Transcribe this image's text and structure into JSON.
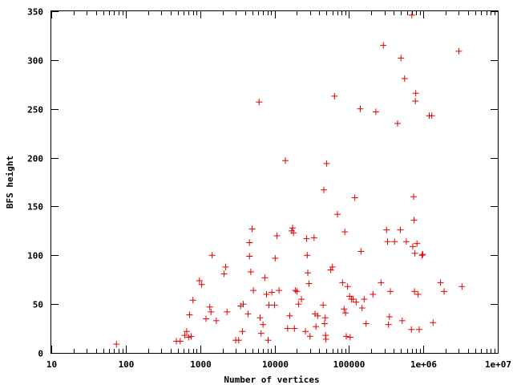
{
  "chart_data": {
    "type": "scatter",
    "xlabel": "Number of vertices",
    "ylabel": "BFS height",
    "x_scale": "log",
    "xlim": [
      10,
      10000000
    ],
    "ylim": [
      0,
      350
    ],
    "x_ticks": [
      {
        "value": 10,
        "label": "10"
      },
      {
        "value": 100,
        "label": "100"
      },
      {
        "value": 1000,
        "label": "1000"
      },
      {
        "value": 10000,
        "label": "10000"
      },
      {
        "value": 100000,
        "label": "100000"
      },
      {
        "value": 1000000,
        "label": "1e+06"
      },
      {
        "value": 10000000,
        "label": "1e+07"
      }
    ],
    "y_ticks": [
      {
        "value": 0,
        "label": "0"
      },
      {
        "value": 50,
        "label": "50"
      },
      {
        "value": 100,
        "label": "100"
      },
      {
        "value": 150,
        "label": "150"
      },
      {
        "value": 200,
        "label": "200"
      },
      {
        "value": 250,
        "label": "250"
      },
      {
        "value": 300,
        "label": "300"
      },
      {
        "value": 350,
        "label": "350"
      }
    ],
    "grid": false,
    "legend": "none",
    "marker": "plus",
    "color": "#e00000",
    "points": [
      [
        75,
        9
      ],
      [
        480,
        12
      ],
      [
        540,
        12
      ],
      [
        620,
        18
      ],
      [
        660,
        22
      ],
      [
        700,
        16
      ],
      [
        720,
        39
      ],
      [
        760,
        17
      ],
      [
        800,
        54
      ],
      [
        980,
        74
      ],
      [
        1050,
        70
      ],
      [
        1200,
        35
      ],
      [
        1350,
        47
      ],
      [
        1400,
        42
      ],
      [
        1450,
        100
      ],
      [
        1650,
        33
      ],
      [
        2100,
        81
      ],
      [
        2200,
        88
      ],
      [
        2300,
        42
      ],
      [
        3000,
        13
      ],
      [
        3300,
        13
      ],
      [
        3500,
        48
      ],
      [
        3700,
        22
      ],
      [
        3800,
        50
      ],
      [
        4400,
        40
      ],
      [
        4600,
        113
      ],
      [
        4600,
        99
      ],
      [
        4800,
        83
      ],
      [
        5000,
        127
      ],
      [
        5200,
        64
      ],
      [
        6200,
        257
      ],
      [
        6400,
        36
      ],
      [
        6600,
        20
      ],
      [
        7000,
        29
      ],
      [
        7400,
        77
      ],
      [
        7800,
        60
      ],
      [
        8200,
        13
      ],
      [
        8400,
        49
      ],
      [
        9200,
        62
      ],
      [
        10000,
        49
      ],
      [
        10200,
        97
      ],
      [
        10800,
        120
      ],
      [
        11500,
        64
      ],
      [
        14000,
        197
      ],
      [
        15000,
        25
      ],
      [
        16000,
        38
      ],
      [
        17000,
        125
      ],
      [
        17500,
        128
      ],
      [
        18000,
        123
      ],
      [
        18500,
        25
      ],
      [
        19000,
        64
      ],
      [
        20000,
        63
      ],
      [
        21000,
        50
      ],
      [
        23000,
        55
      ],
      [
        26000,
        22
      ],
      [
        27000,
        117
      ],
      [
        27500,
        100
      ],
      [
        28000,
        82
      ],
      [
        29000,
        71
      ],
      [
        30000,
        17
      ],
      [
        34000,
        118
      ],
      [
        35000,
        40
      ],
      [
        36000,
        27
      ],
      [
        38000,
        38
      ],
      [
        45000,
        49
      ],
      [
        46000,
        167
      ],
      [
        47000,
        30
      ],
      [
        48000,
        36
      ],
      [
        48500,
        18
      ],
      [
        49000,
        14
      ],
      [
        50000,
        194
      ],
      [
        57000,
        85
      ],
      [
        60000,
        88
      ],
      [
        64000,
        263
      ],
      [
        70000,
        142
      ],
      [
        82000,
        72
      ],
      [
        86000,
        45
      ],
      [
        88000,
        124
      ],
      [
        90000,
        41
      ],
      [
        92000,
        17
      ],
      [
        96000,
        68
      ],
      [
        102000,
        58
      ],
      [
        104000,
        16
      ],
      [
        108000,
        55
      ],
      [
        114000,
        55
      ],
      [
        120000,
        159
      ],
      [
        125000,
        52
      ],
      [
        142000,
        250
      ],
      [
        145000,
        104
      ],
      [
        150000,
        46
      ],
      [
        160000,
        55
      ],
      [
        170000,
        30
      ],
      [
        210000,
        60
      ],
      [
        230000,
        247
      ],
      [
        270000,
        72
      ],
      [
        290000,
        315
      ],
      [
        320000,
        126
      ],
      [
        330000,
        114
      ],
      [
        340000,
        29
      ],
      [
        350000,
        37
      ],
      [
        360000,
        63
      ],
      [
        410000,
        114
      ],
      [
        450000,
        235
      ],
      [
        490000,
        126
      ],
      [
        500000,
        302
      ],
      [
        520000,
        33
      ],
      [
        560000,
        281
      ],
      [
        590000,
        114
      ],
      [
        690000,
        24
      ],
      [
        700000,
        346
      ],
      [
        720000,
        109
      ],
      [
        740000,
        160
      ],
      [
        750000,
        136
      ],
      [
        760000,
        63
      ],
      [
        770000,
        102
      ],
      [
        780000,
        258
      ],
      [
        790000,
        266
      ],
      [
        820000,
        112
      ],
      [
        850000,
        60
      ],
      [
        880000,
        24
      ],
      [
        960000,
        100
      ],
      [
        980000,
        101
      ],
      [
        1200000,
        243
      ],
      [
        1300000,
        243
      ],
      [
        1350000,
        31
      ],
      [
        1700000,
        72
      ],
      [
        1900000,
        63
      ],
      [
        3000000,
        309
      ],
      [
        3300000,
        68
      ]
    ]
  }
}
